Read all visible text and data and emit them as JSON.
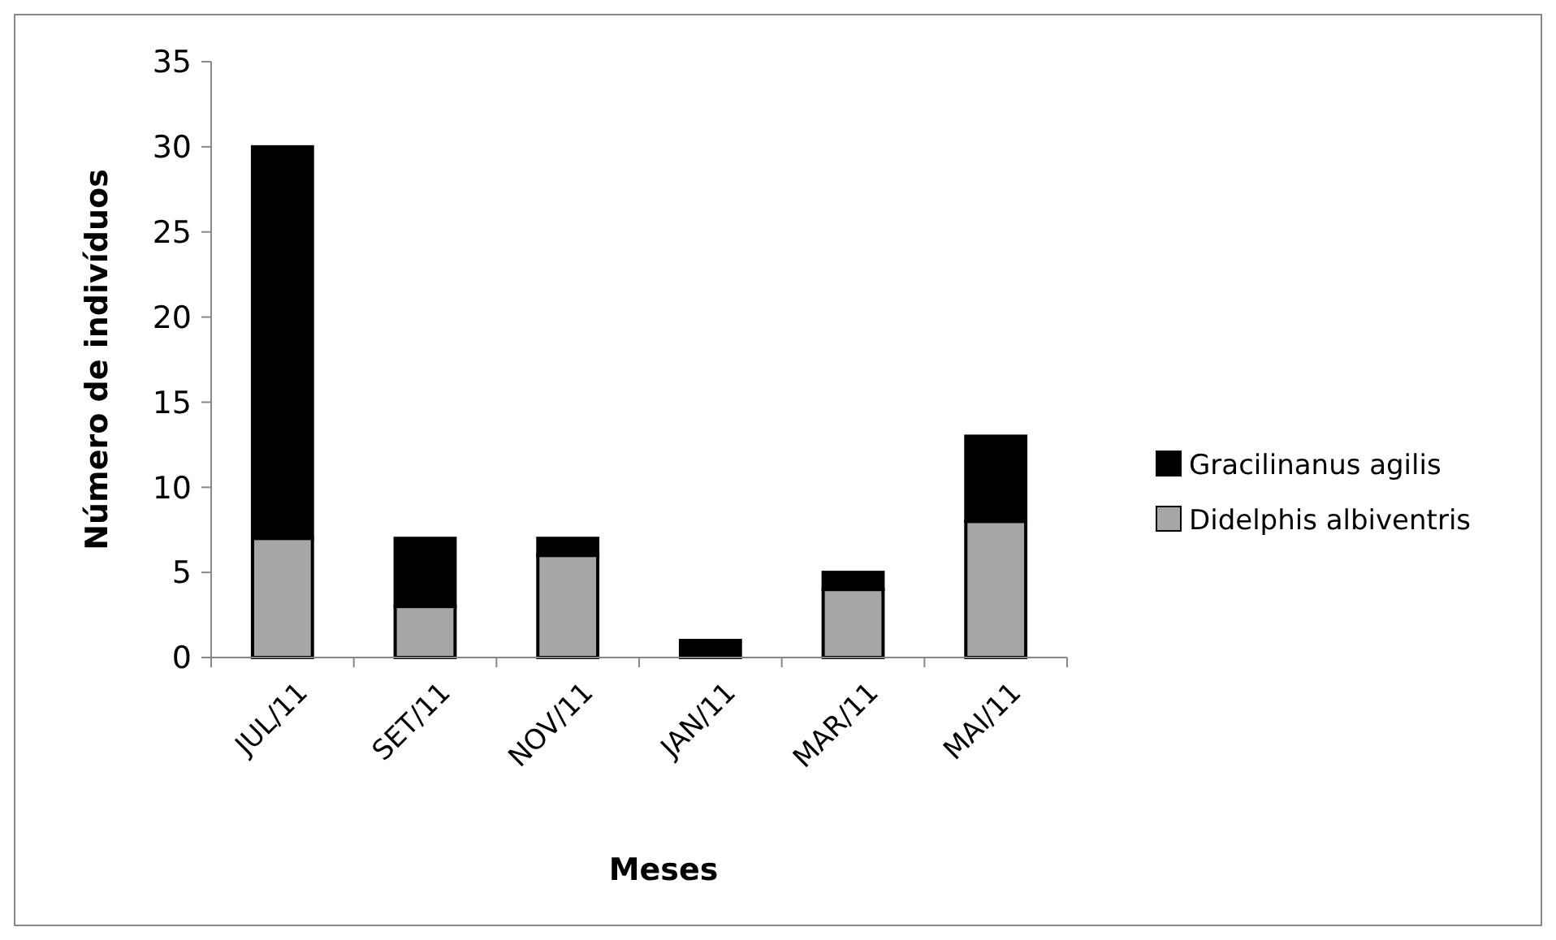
{
  "chart_data": {
    "type": "bar",
    "stacked": true,
    "xlabel": "Meses",
    "ylabel": "Número de indivíduos",
    "categories": [
      "JUL/11",
      "SET/11",
      "NOV/11",
      "JAN/11",
      "MAR/11",
      "MAI/11"
    ],
    "series": [
      {
        "name": "Didelphis albiventris",
        "color": "#a6a6a6",
        "values": [
          7,
          3,
          6,
          0,
          4,
          8
        ]
      },
      {
        "name": "Gracilinanus agilis",
        "color": "#000000",
        "values": [
          23,
          4,
          1,
          1,
          1,
          5
        ]
      }
    ],
    "ylim": [
      0,
      35
    ],
    "yticks": [
      0,
      5,
      10,
      15,
      20,
      25,
      30,
      35
    ],
    "grid": false,
    "legend": "right"
  }
}
